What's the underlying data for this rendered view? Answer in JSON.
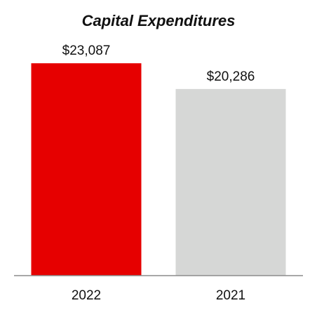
{
  "chart_data": {
    "type": "bar",
    "title": "Capital Expenditures",
    "categories": [
      "2022",
      "2021"
    ],
    "values": [
      23087,
      20286
    ],
    "data_labels": [
      "$23,087",
      "$20,286"
    ],
    "colors": [
      "#e60000",
      "#d6d7d6"
    ],
    "axis_color": "#8c8c8c",
    "ylim": [
      0,
      26000
    ],
    "xlabel": "",
    "ylabel": "",
    "grid": false,
    "legend": "none"
  }
}
